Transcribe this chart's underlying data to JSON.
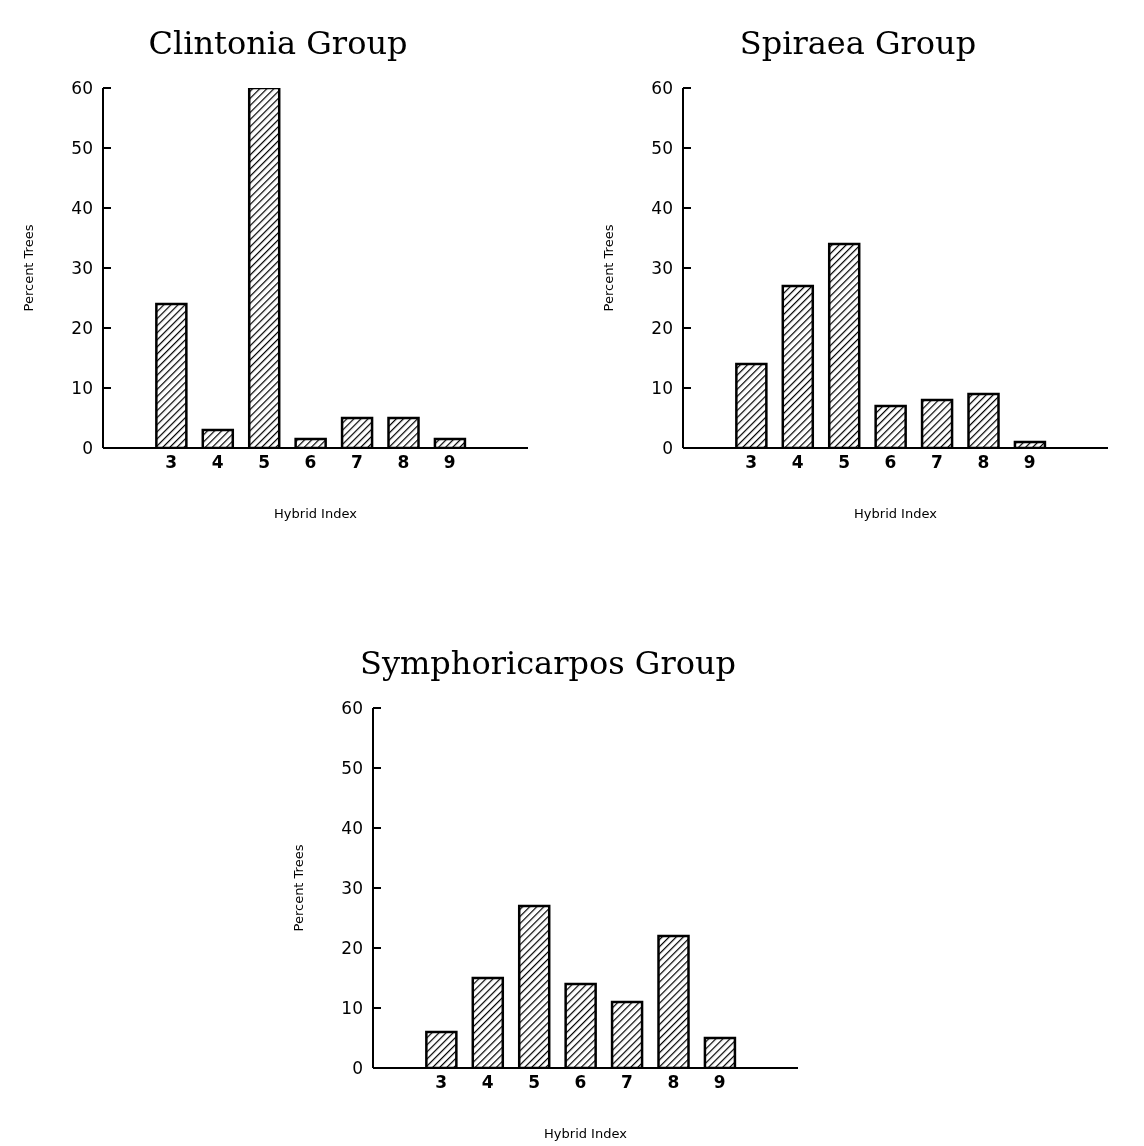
{
  "chart_data": [
    {
      "type": "bar",
      "title": "Clintonia Group",
      "xlabel": "Hybrid Index",
      "ylabel": "Percent Trees",
      "categories": [
        "3",
        "4",
        "5",
        "6",
        "7",
        "8",
        "9"
      ],
      "values": [
        24,
        3,
        60,
        1.5,
        5,
        5,
        1.5
      ],
      "color": "#000000",
      "ylim": [
        0,
        60
      ],
      "yticks": [
        0,
        10,
        20,
        30,
        40,
        50,
        60
      ]
    },
    {
      "type": "bar",
      "title": "Spiraea Group",
      "xlabel": "Hybrid Index",
      "ylabel": "Percent Trees",
      "categories": [
        "3",
        "4",
        "5",
        "6",
        "7",
        "8",
        "9"
      ],
      "values": [
        14,
        27,
        34,
        7,
        8,
        9,
        1
      ],
      "color": "#000000",
      "ylim": [
        0,
        60
      ],
      "yticks": [
        0,
        10,
        20,
        30,
        40,
        50,
        60
      ]
    },
    {
      "type": "bar",
      "title": "Symphoricarpos Group",
      "xlabel": "Hybrid Index",
      "ylabel": "Percent Trees",
      "categories": [
        "3",
        "4",
        "5",
        "6",
        "7",
        "8",
        "9"
      ],
      "values": [
        6,
        15,
        27,
        14,
        11,
        22,
        5
      ],
      "color": "#000000",
      "ylim": [
        0,
        60
      ],
      "yticks": [
        0,
        10,
        20,
        30,
        40,
        50,
        60
      ]
    }
  ]
}
